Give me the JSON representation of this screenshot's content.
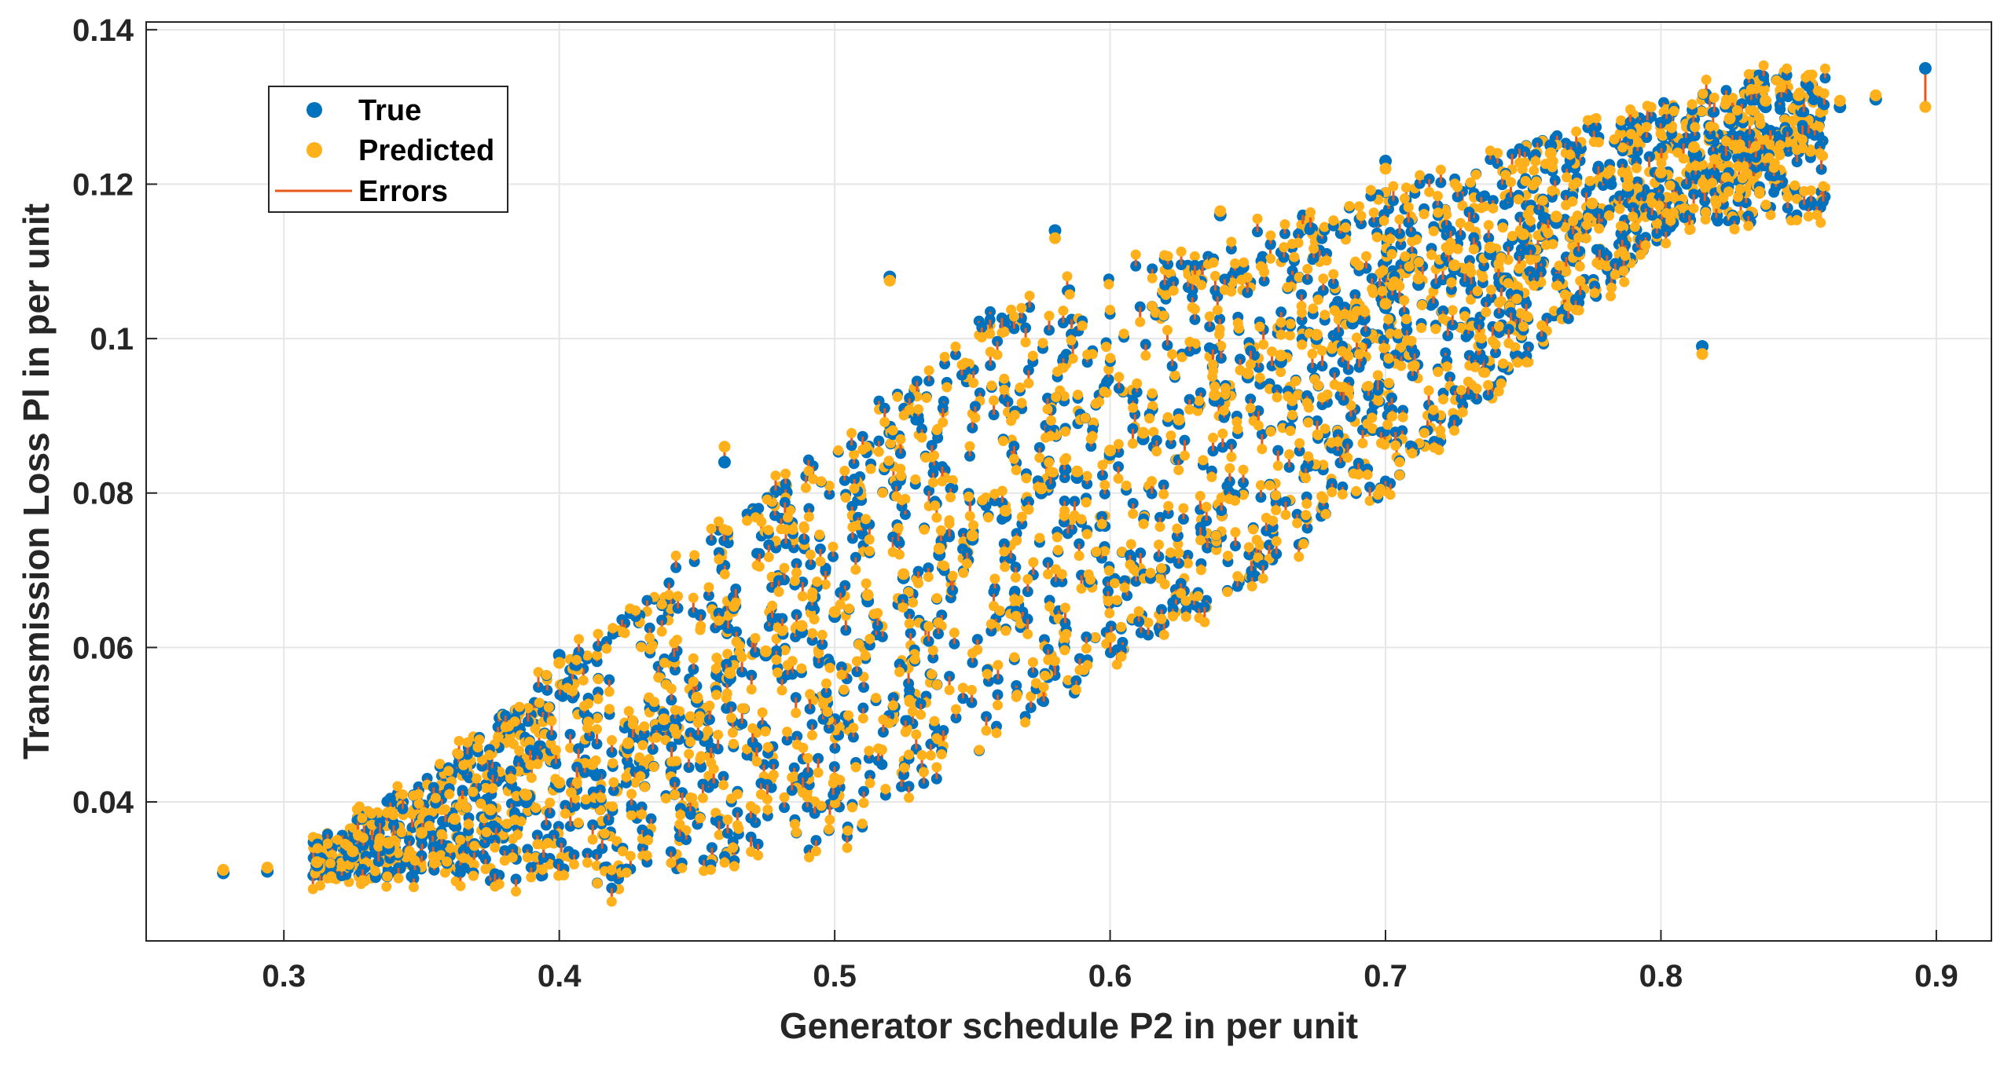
{
  "chart_data": {
    "type": "scatter",
    "title": "",
    "xlabel": "Generator schedule P2 in per unit",
    "ylabel": "Transmission Loss Pl in per unit",
    "xlim": [
      0.25,
      0.92
    ],
    "ylim": [
      0.022,
      0.141
    ],
    "xticks": [
      0.3,
      0.4,
      0.5,
      0.6,
      0.7,
      0.8,
      0.9
    ],
    "xtick_labels": [
      "0.3",
      "0.4",
      "0.5",
      "0.6",
      "0.7",
      "0.8",
      "0.9"
    ],
    "yticks": [
      0.04,
      0.06,
      0.08,
      0.1,
      0.12,
      0.14
    ],
    "ytick_labels": [
      "0.04",
      "0.06",
      "0.08",
      "0.1",
      "0.12",
      "0.14"
    ],
    "grid": true,
    "legend": {
      "position": "top-left",
      "entries": [
        {
          "label": "True",
          "kind": "marker",
          "color": "#0072BD"
        },
        {
          "label": "Predicted",
          "kind": "marker",
          "color": "#FFB01A"
        },
        {
          "label": "Errors",
          "kind": "line",
          "color": "#E8581A"
        }
      ]
    },
    "series": [
      {
        "name": "True",
        "color": "#0072BD",
        "x": [
          0.278,
          0.294,
          0.312,
          0.325,
          0.338,
          0.35,
          0.362,
          0.375,
          0.388,
          0.4,
          0.412,
          0.425,
          0.438,
          0.45,
          0.462,
          0.475,
          0.488,
          0.5,
          0.512,
          0.525,
          0.538,
          0.55,
          0.562,
          0.575,
          0.588,
          0.6,
          0.612,
          0.625,
          0.638,
          0.65,
          0.662,
          0.675,
          0.688,
          0.7,
          0.712,
          0.725,
          0.738,
          0.75,
          0.762,
          0.775,
          0.788,
          0.8,
          0.812,
          0.825,
          0.838,
          0.85,
          0.865,
          0.878,
          0.896,
          0.4,
          0.46,
          0.52,
          0.58,
          0.64,
          0.7,
          0.76,
          0.815
        ],
        "y": [
          0.0308,
          0.031,
          0.0318,
          0.033,
          0.034,
          0.0355,
          0.037,
          0.0385,
          0.04,
          0.042,
          0.044,
          0.047,
          0.05,
          0.053,
          0.056,
          0.059,
          0.062,
          0.064,
          0.066,
          0.069,
          0.072,
          0.074,
          0.077,
          0.08,
          0.082,
          0.085,
          0.087,
          0.089,
          0.092,
          0.095,
          0.097,
          0.1,
          0.102,
          0.104,
          0.107,
          0.109,
          0.111,
          0.113,
          0.115,
          0.117,
          0.119,
          0.121,
          0.124,
          0.128,
          0.13,
          0.131,
          0.13,
          0.131,
          0.135,
          0.059,
          0.084,
          0.108,
          0.114,
          0.116,
          0.123,
          0.125,
          0.099
        ]
      },
      {
        "name": "Predicted",
        "color": "#FFB01A",
        "x": [
          0.278,
          0.294,
          0.312,
          0.325,
          0.338,
          0.35,
          0.362,
          0.375,
          0.388,
          0.4,
          0.412,
          0.425,
          0.438,
          0.45,
          0.462,
          0.475,
          0.488,
          0.5,
          0.512,
          0.525,
          0.538,
          0.55,
          0.562,
          0.575,
          0.588,
          0.6,
          0.612,
          0.625,
          0.638,
          0.65,
          0.662,
          0.675,
          0.688,
          0.7,
          0.712,
          0.725,
          0.738,
          0.75,
          0.762,
          0.775,
          0.788,
          0.8,
          0.812,
          0.825,
          0.838,
          0.85,
          0.865,
          0.878,
          0.896,
          0.4,
          0.46,
          0.52,
          0.58,
          0.64,
          0.7,
          0.76,
          0.815
        ],
        "y": [
          0.0312,
          0.0315,
          0.0322,
          0.0336,
          0.0347,
          0.036,
          0.0378,
          0.039,
          0.0409,
          0.0425,
          0.0449,
          0.0476,
          0.0507,
          0.0535,
          0.0567,
          0.0595,
          0.0628,
          0.0646,
          0.0668,
          0.0695,
          0.0728,
          0.0745,
          0.0777,
          0.0806,
          0.0828,
          0.0855,
          0.0878,
          0.0895,
          0.0927,
          0.0955,
          0.0978,
          0.1005,
          0.1028,
          0.1045,
          0.1078,
          0.1095,
          0.1118,
          0.1135,
          0.1158,
          0.1175,
          0.1198,
          0.1215,
          0.1248,
          0.1285,
          0.1308,
          0.1315,
          0.1308,
          0.1315,
          0.13,
          0.058,
          0.086,
          0.1075,
          0.113,
          0.1165,
          0.122,
          0.124,
          0.098
        ]
      }
    ],
    "notes": "Dense cloud of several thousand points: True (blue) and Predicted (orange) markers joined by vertical Errors lines; lower envelope rises from ~0.03 at x≈0.40 to ~0.12 at x≈0.80, upper envelope from ~0.05 at x≈0.35 to ~0.135 at x≈0.84."
  }
}
